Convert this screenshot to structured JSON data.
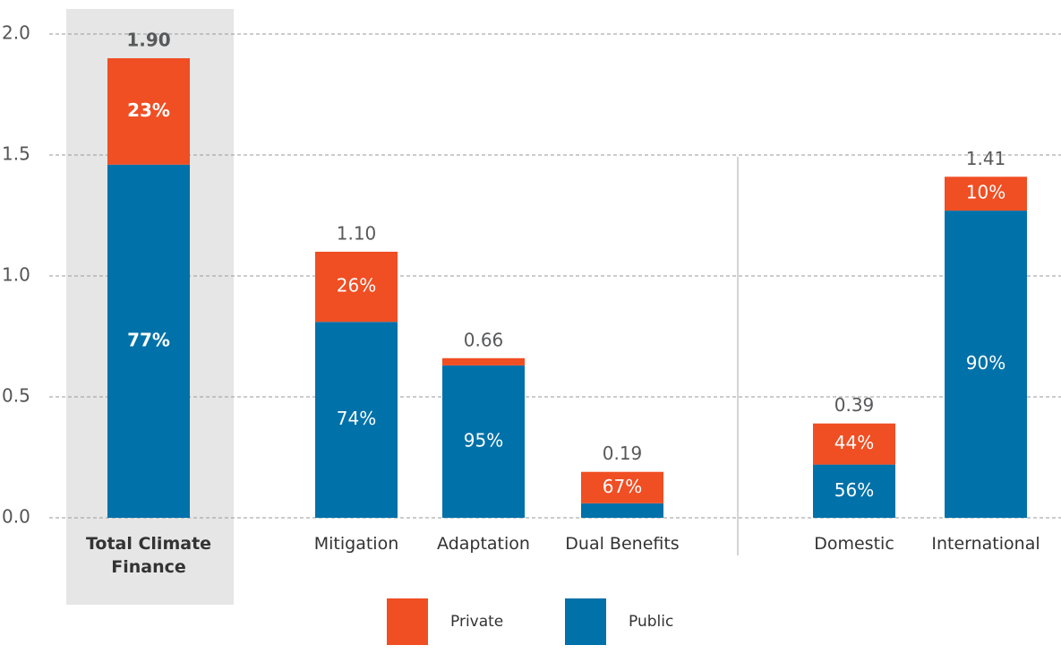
{
  "chart_data": {
    "type": "stacked_bar",
    "categories": [
      "Total Climate Finance",
      "Mitigation",
      "Adaptation",
      "Dual Benefits",
      "Domestic",
      "International"
    ],
    "highlight_category": 0,
    "totals": [
      1.9,
      1.1,
      0.66,
      0.19,
      0.39,
      1.41
    ],
    "total_labels": [
      "1.90",
      "1.10",
      "0.66",
      "0.19",
      "0.39",
      "1.41"
    ],
    "series": [
      {
        "name": "Public",
        "color": "#0071a9",
        "values": [
          1.46,
          0.81,
          0.63,
          0.06,
          0.22,
          1.27
        ],
        "labels": [
          "77%",
          "74%",
          "95%",
          "",
          "56%",
          "90%"
        ]
      },
      {
        "name": "Private",
        "color": "#f04e23",
        "values": [
          0.44,
          0.29,
          0.03,
          0.13,
          0.17,
          0.14
        ],
        "labels": [
          "23%",
          "26%",
          "",
          "67%",
          "44%",
          "10%"
        ]
      }
    ],
    "ylim": [
      0,
      2
    ],
    "yticks": [
      {
        "value": 0,
        "label": "0.0"
      },
      {
        "value": 0.5,
        "label": "0.5"
      },
      {
        "value": 1,
        "label": "1.0"
      },
      {
        "value": 1.5,
        "label": "1.5"
      },
      {
        "value": 2,
        "label": "2.0"
      }
    ],
    "grid": true
  }
}
